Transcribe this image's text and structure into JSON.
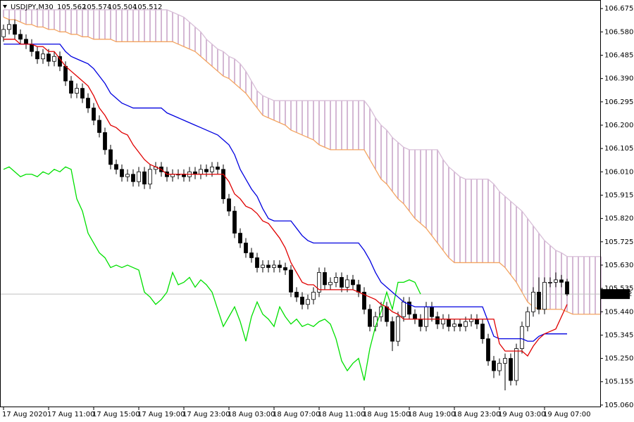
{
  "chart_data": {
    "type": "candlestick",
    "symbol": "USDJPY,M30",
    "categories": [
      "17 Aug 2020",
      null,
      null,
      null,
      null,
      null,
      null,
      null,
      "17 Aug 11:00",
      null,
      null,
      null,
      null,
      null,
      null,
      null,
      "17 Aug 15:00",
      null,
      null,
      null,
      null,
      null,
      null,
      null,
      "17 Aug 19:00",
      null,
      null,
      null,
      null,
      null,
      null,
      null,
      "17 Aug 23:00",
      null,
      null,
      null,
      null,
      null,
      null,
      null,
      "18 Aug 03:00",
      null,
      null,
      null,
      null,
      null,
      null,
      null,
      "18 Aug 07:00",
      null,
      null,
      null,
      null,
      null,
      null,
      null,
      "18 Aug 11:00",
      null,
      null,
      null,
      null,
      null,
      null,
      null,
      "18 Aug 15:00",
      null,
      null,
      null,
      null,
      null,
      null,
      null,
      "18 Aug 19:00",
      null,
      null,
      null,
      null,
      null,
      null,
      null,
      "18 Aug 23:00",
      null,
      null,
      null,
      null,
      null,
      null,
      null,
      "19 Aug 03:00",
      null,
      null,
      null,
      null,
      null,
      null,
      null,
      "19 Aug 07:00",
      null,
      null,
      null,
      null,
      null,
      null,
      null,
      null,
      null,
      null
    ],
    "open": [
      106.56,
      106.59,
      106.61,
      106.57,
      106.55,
      106.53,
      106.5,
      106.47,
      106.49,
      106.46,
      106.48,
      106.44,
      106.38,
      106.33,
      106.35,
      106.31,
      106.27,
      106.22,
      106.17,
      106.1,
      106.04,
      106.02,
      105.99,
      106.0,
      105.97,
      106.01,
      105.96,
      106.02,
      106.03,
      106.01,
      105.99,
      106.0,
      106.0,
      105.99,
      106.01,
      106.0,
      106.02,
      106.01,
      106.03,
      106.02,
      105.9,
      105.85,
      105.76,
      105.72,
      105.68,
      105.66,
      105.62,
      105.63,
      105.62,
      105.63,
      105.62,
      105.61,
      105.52,
      105.5,
      105.47,
      105.49,
      105.52,
      105.6,
      105.55,
      105.56,
      105.58,
      105.54,
      105.57,
      105.55,
      105.52,
      105.45,
      105.38,
      105.42,
      105.46,
      105.4,
      105.32,
      105.42,
      105.48,
      105.43,
      105.41,
      105.38,
      105.46,
      105.42,
      105.39,
      105.41,
      105.38,
      105.39,
      105.38,
      105.4,
      105.41,
      105.39,
      105.33,
      105.24,
      105.2,
      105.23,
      105.25,
      105.16,
      105.29,
      105.38,
      105.44,
      105.52,
      105.45,
      105.56,
      105.56,
      105.57,
      105.562,
      null,
      null,
      null,
      null,
      null,
      null
    ],
    "high": [
      106.61,
      106.63,
      106.63,
      106.59,
      106.57,
      106.55,
      106.52,
      106.51,
      106.51,
      106.5,
      106.5,
      106.46,
      106.4,
      106.37,
      106.37,
      106.33,
      106.29,
      106.24,
      106.19,
      106.12,
      106.06,
      106.04,
      106.02,
      106.02,
      106.03,
      106.03,
      106.04,
      106.05,
      106.05,
      106.03,
      106.02,
      106.02,
      106.02,
      106.03,
      106.03,
      106.04,
      106.04,
      106.05,
      106.05,
      106.04,
      105.92,
      105.87,
      105.78,
      105.74,
      105.7,
      105.68,
      105.65,
      105.65,
      105.65,
      105.65,
      105.64,
      105.63,
      105.54,
      105.52,
      105.51,
      105.54,
      105.62,
      105.62,
      105.58,
      105.6,
      105.6,
      105.59,
      105.59,
      105.57,
      105.54,
      105.47,
      105.44,
      105.48,
      105.48,
      105.42,
      105.44,
      105.5,
      105.5,
      105.45,
      105.43,
      105.48,
      105.48,
      105.44,
      105.43,
      105.43,
      105.41,
      105.41,
      105.42,
      105.43,
      105.43,
      105.41,
      105.35,
      105.26,
      105.25,
      105.27,
      105.27,
      105.31,
      105.4,
      105.46,
      105.54,
      105.58,
      105.58,
      105.58,
      105.6,
      105.59,
      105.574,
      null,
      null,
      null,
      null,
      null,
      null
    ],
    "low": [
      106.54,
      106.57,
      106.55,
      106.53,
      106.51,
      106.48,
      106.45,
      106.45,
      106.44,
      106.44,
      106.42,
      106.36,
      106.31,
      106.31,
      106.29,
      106.25,
      106.2,
      106.15,
      106.08,
      106.02,
      106.0,
      105.97,
      105.97,
      105.95,
      105.95,
      105.94,
      105.94,
      106.0,
      105.99,
      105.97,
      105.97,
      105.98,
      105.97,
      105.97,
      105.98,
      105.98,
      105.99,
      105.99,
      106.0,
      105.88,
      105.83,
      105.74,
      105.7,
      105.66,
      105.64,
      105.6,
      105.6,
      105.6,
      105.6,
      105.6,
      105.59,
      105.5,
      105.48,
      105.45,
      105.45,
      105.47,
      105.5,
      105.53,
      105.53,
      105.54,
      105.52,
      105.52,
      105.53,
      105.5,
      105.43,
      105.36,
      105.36,
      105.4,
      105.38,
      105.28,
      105.3,
      105.4,
      105.41,
      105.39,
      105.36,
      105.36,
      105.4,
      105.37,
      105.37,
      105.36,
      105.36,
      105.36,
      105.36,
      105.38,
      105.37,
      105.31,
      105.22,
      105.17,
      105.18,
      105.12,
      105.14,
      105.14,
      105.27,
      105.36,
      105.42,
      105.43,
      105.43,
      105.54,
      105.54,
      105.54,
      105.504,
      null,
      null,
      null,
      null,
      null,
      null
    ],
    "close": [
      106.59,
      106.61,
      106.57,
      106.55,
      106.53,
      106.5,
      106.47,
      106.49,
      106.46,
      106.48,
      106.44,
      106.38,
      106.33,
      106.35,
      106.31,
      106.27,
      106.22,
      106.17,
      106.1,
      106.04,
      106.02,
      105.99,
      106.0,
      105.97,
      106.01,
      105.96,
      106.02,
      106.03,
      106.01,
      105.99,
      106.0,
      106.0,
      105.99,
      106.01,
      106.0,
      106.02,
      106.01,
      106.03,
      106.02,
      105.9,
      105.85,
      105.76,
      105.72,
      105.68,
      105.66,
      105.62,
      105.63,
      105.62,
      105.63,
      105.62,
      105.61,
      105.52,
      105.5,
      105.47,
      105.49,
      105.52,
      105.6,
      105.55,
      105.56,
      105.58,
      105.54,
      105.57,
      105.55,
      105.52,
      105.45,
      105.38,
      105.42,
      105.46,
      105.4,
      105.32,
      105.42,
      105.48,
      105.43,
      105.41,
      105.38,
      105.46,
      105.42,
      105.39,
      105.41,
      105.38,
      105.39,
      105.38,
      105.4,
      105.41,
      105.39,
      105.33,
      105.24,
      105.2,
      105.23,
      105.25,
      105.16,
      105.29,
      105.38,
      105.44,
      105.52,
      105.45,
      105.56,
      105.56,
      105.57,
      105.56,
      105.512,
      null,
      null,
      null,
      null,
      null,
      null
    ],
    "up_color": "#ffffff",
    "down_color": "#000000",
    "tenkan": {
      "color": "#e00000",
      "values": [
        106.55,
        106.55,
        106.55,
        106.53,
        106.53,
        106.53,
        106.52,
        106.52,
        106.5,
        106.5,
        106.47,
        106.44,
        106.42,
        106.4,
        106.38,
        106.36,
        106.32,
        106.27,
        106.24,
        106.2,
        106.19,
        106.17,
        106.16,
        106.12,
        106.09,
        106.06,
        106.04,
        106.03,
        106.02,
        106.0,
        106.0,
        106.0,
        106.0,
        106.0,
        106.0,
        106.0,
        106.0,
        106.0,
        106.0,
        106.0,
        105.97,
        105.92,
        105.9,
        105.87,
        105.86,
        105.84,
        105.81,
        105.8,
        105.77,
        105.74,
        105.7,
        105.64,
        105.6,
        105.56,
        105.55,
        105.55,
        105.53,
        105.53,
        105.53,
        105.53,
        105.53,
        105.53,
        105.53,
        105.52,
        105.51,
        105.5,
        105.49,
        105.47,
        105.46,
        105.44,
        105.43,
        105.41,
        105.41,
        105.41,
        105.41,
        105.41,
        105.41,
        105.41,
        105.41,
        105.41,
        105.41,
        105.41,
        105.41,
        105.41,
        105.41,
        105.41,
        105.41,
        105.41,
        105.31,
        105.28,
        105.28,
        105.28,
        105.28,
        105.26,
        105.3,
        105.33,
        105.35,
        105.36,
        105.37,
        105.42,
        105.47,
        null,
        null,
        null,
        null,
        null,
        null
      ]
    },
    "kijun": {
      "color": "#0000e0",
      "values": [
        106.53,
        106.53,
        106.53,
        106.53,
        106.53,
        106.53,
        106.53,
        106.53,
        106.53,
        106.53,
        106.53,
        106.5,
        106.48,
        106.47,
        106.46,
        106.45,
        106.43,
        106.4,
        106.37,
        106.33,
        106.31,
        106.29,
        106.28,
        106.27,
        106.27,
        106.27,
        106.27,
        106.27,
        106.27,
        106.25,
        106.24,
        106.23,
        106.22,
        106.21,
        106.2,
        106.19,
        106.18,
        106.17,
        106.16,
        106.14,
        106.12,
        106.08,
        106.02,
        105.98,
        105.94,
        105.91,
        105.86,
        105.82,
        105.81,
        105.81,
        105.81,
        105.81,
        105.78,
        105.75,
        105.73,
        105.72,
        105.72,
        105.72,
        105.72,
        105.72,
        105.72,
        105.72,
        105.72,
        105.72,
        105.69,
        105.65,
        105.6,
        105.56,
        105.54,
        105.52,
        105.5,
        105.48,
        105.47,
        105.46,
        105.46,
        105.46,
        105.46,
        105.46,
        105.46,
        105.46,
        105.46,
        105.46,
        105.46,
        105.46,
        105.46,
        105.46,
        105.4,
        105.34,
        105.33,
        105.33,
        105.33,
        105.33,
        105.33,
        105.32,
        105.32,
        105.34,
        105.35,
        105.35,
        105.35,
        105.35,
        105.35,
        null,
        null,
        null,
        null,
        null,
        null
      ]
    },
    "chikou": {
      "color": "#00e000",
      "values": [
        106.02,
        106.03,
        106.01,
        105.99,
        106.0,
        106.0,
        105.99,
        106.01,
        106.0,
        106.02,
        106.01,
        106.03,
        106.02,
        105.9,
        105.85,
        105.76,
        105.72,
        105.68,
        105.66,
        105.62,
        105.63,
        105.62,
        105.63,
        105.62,
        105.61,
        105.52,
        105.5,
        105.47,
        105.49,
        105.52,
        105.6,
        105.55,
        105.56,
        105.58,
        105.54,
        105.57,
        105.55,
        105.52,
        105.45,
        105.38,
        105.42,
        105.46,
        105.4,
        105.32,
        105.42,
        105.48,
        105.43,
        105.41,
        105.38,
        105.46,
        105.42,
        105.39,
        105.41,
        105.38,
        105.39,
        105.38,
        105.4,
        105.41,
        105.39,
        105.33,
        105.24,
        105.2,
        105.23,
        105.25,
        105.16,
        105.29,
        105.38,
        105.44,
        105.52,
        105.45,
        105.56,
        105.56,
        105.57,
        105.56,
        105.512,
        null,
        null,
        null,
        null,
        null,
        null,
        null,
        null,
        null,
        null,
        null,
        null,
        null,
        null,
        null,
        null,
        null,
        null,
        null,
        null,
        null,
        null,
        null,
        null,
        null,
        null,
        null,
        null,
        null,
        null,
        null,
        null
      ]
    },
    "senkou_a": {
      "color": "#f4a460",
      "values": [
        106.64,
        106.63,
        106.63,
        106.62,
        106.61,
        106.61,
        106.6,
        106.6,
        106.59,
        106.59,
        106.58,
        106.58,
        106.57,
        106.57,
        106.56,
        106.56,
        106.55,
        106.55,
        106.55,
        106.55,
        106.54,
        106.54,
        106.54,
        106.54,
        106.54,
        106.54,
        106.54,
        106.54,
        106.54,
        106.54,
        106.54,
        106.53,
        106.52,
        106.51,
        106.5,
        106.48,
        106.46,
        106.44,
        106.42,
        106.4,
        106.39,
        106.37,
        106.35,
        106.33,
        106.3,
        106.27,
        106.24,
        106.23,
        106.22,
        106.21,
        106.2,
        106.18,
        106.17,
        106.16,
        106.15,
        106.14,
        106.12,
        106.11,
        106.1,
        106.1,
        106.1,
        106.1,
        106.1,
        106.1,
        106.1,
        106.06,
        106.02,
        105.98,
        105.96,
        105.93,
        105.9,
        105.88,
        105.85,
        105.82,
        105.8,
        105.78,
        105.75,
        105.72,
        105.69,
        105.66,
        105.64,
        105.64,
        105.64,
        105.64,
        105.64,
        105.64,
        105.64,
        105.64,
        105.64,
        105.62,
        105.59,
        105.56,
        105.52,
        105.48,
        105.46,
        105.45,
        105.45,
        105.45,
        105.45,
        105.45,
        105.44,
        105.43,
        105.43,
        105.43,
        105.43,
        105.43,
        105.43
      ]
    },
    "senkou_b": {
      "color": "#d8bfd8",
      "values": [
        106.67,
        106.67,
        106.67,
        106.67,
        106.67,
        106.67,
        106.67,
        106.67,
        106.67,
        106.67,
        106.67,
        106.67,
        106.67,
        106.67,
        106.67,
        106.67,
        106.67,
        106.67,
        106.67,
        106.67,
        106.67,
        106.67,
        106.67,
        106.67,
        106.67,
        106.67,
        106.67,
        106.67,
        106.67,
        106.67,
        106.66,
        106.65,
        106.64,
        106.62,
        106.6,
        106.58,
        106.55,
        106.53,
        106.51,
        106.5,
        106.48,
        106.47,
        106.45,
        106.42,
        106.38,
        106.34,
        106.32,
        106.31,
        106.3,
        106.3,
        106.3,
        106.3,
        106.3,
        106.3,
        106.3,
        106.3,
        106.3,
        106.3,
        106.3,
        106.3,
        106.3,
        106.3,
        106.3,
        106.3,
        106.3,
        106.27,
        106.23,
        106.2,
        106.18,
        106.15,
        106.13,
        106.11,
        106.1,
        106.1,
        106.1,
        106.1,
        106.1,
        106.1,
        106.06,
        106.03,
        106.01,
        105.99,
        105.98,
        105.98,
        105.98,
        105.98,
        105.98,
        105.96,
        105.93,
        105.91,
        105.89,
        105.87,
        105.85,
        105.82,
        105.79,
        105.76,
        105.73,
        105.71,
        105.69,
        105.68,
        105.665,
        105.665,
        105.665,
        105.665,
        105.665,
        105.665,
        105.665
      ]
    },
    "cloud_color": "#c9a6c9",
    "price_line_color": "#c0c0c0",
    "ylim": [
      105.054,
      106.707
    ],
    "yticks": [
      {
        "value": 105.06,
        "label": "105.060"
      },
      105.155,
      {
        "value": 105.25,
        "label": "105.250"
      },
      105.345,
      {
        "value": 105.44,
        "label": "105.440"
      },
      105.535,
      {
        "value": 105.63,
        "label": "105.630"
      },
      105.725,
      {
        "value": 105.82,
        "label": "105.820"
      },
      105.915,
      {
        "value": 106.01,
        "label": "106.010"
      },
      106.105,
      {
        "value": 106.2,
        "label": "106.200"
      },
      106.295,
      {
        "value": 106.39,
        "label": "106.390"
      },
      106.485,
      {
        "value": 106.58,
        "label": "106.580"
      },
      106.675
    ],
    "grid": false
  }
}
